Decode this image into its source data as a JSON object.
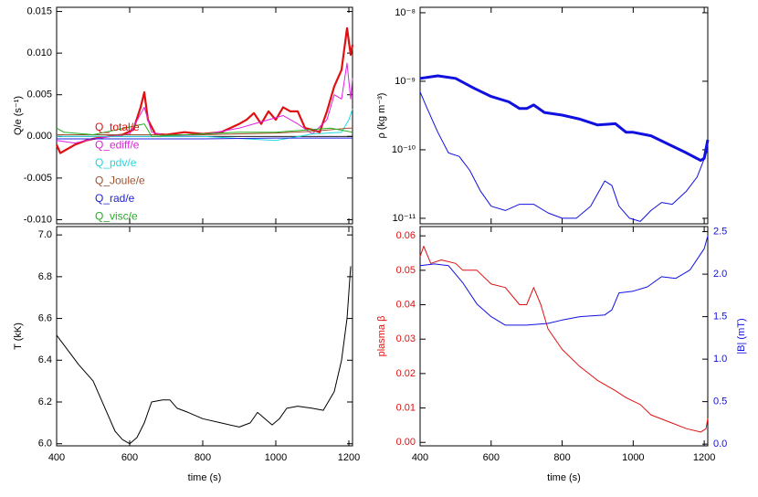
{
  "chart_data": [
    {
      "type": "line",
      "ylabel": "Q/e (s⁻¹)",
      "xlim": [
        400,
        1210
      ],
      "xticks": [
        400,
        600,
        800,
        1000,
        1200
      ],
      "ylim": [
        -0.0105,
        0.0155
      ],
      "yticks": [
        {
          "value": -0.01,
          "label": "-0.010"
        },
        -0.005,
        {
          "value": 0,
          "label": "0.000"
        },
        0.005,
        {
          "value": 0.01,
          "label": "0.010"
        },
        0.015
      ],
      "legend": "left",
      "series": [
        {
          "name": "Q_total/e",
          "color": "#e01010",
          "width": 2.2,
          "x": [
            400,
            410,
            430,
            450,
            480,
            500,
            540,
            580,
            610,
            630,
            640,
            650,
            670,
            700,
            750,
            800,
            850,
            900,
            920,
            940,
            960,
            980,
            1000,
            1020,
            1040,
            1060,
            1080,
            1100,
            1120,
            1140,
            1160,
            1180,
            1195,
            1205,
            1210
          ],
          "values": [
            -0.001,
            -0.002,
            -0.0015,
            -0.001,
            -0.0005,
            -0.0003,
            0,
            0.0002,
            0.0008,
            0.0035,
            0.0053,
            0.002,
            0.0003,
            0.0002,
            0.0005,
            0.0003,
            0.0005,
            0.0015,
            0.002,
            0.0028,
            0.0015,
            0.003,
            0.002,
            0.0035,
            0.003,
            0.003,
            0.001,
            0.0008,
            0.0005,
            0.003,
            0.006,
            0.008,
            0.013,
            0.0098,
            0.011
          ]
        },
        {
          "name": "Q_ediff/e",
          "color": "#e020e0",
          "width": 1,
          "x": [
            400,
            450,
            500,
            600,
            640,
            660,
            700,
            800,
            900,
            940,
            980,
            1020,
            1060,
            1100,
            1140,
            1160,
            1180,
            1195,
            1205,
            1210
          ],
          "values": [
            -0.0005,
            -0.0008,
            -0.0003,
            0.0003,
            0.0035,
            0.0005,
            0.0001,
            0.0002,
            0.001,
            0.0015,
            0.002,
            0.0025,
            0.0015,
            0.0003,
            0.002,
            0.005,
            0.0045,
            0.0088,
            0.0045,
            0.007
          ]
        },
        {
          "name": "Q_pdv/e",
          "color": "#20d8e0",
          "width": 1,
          "x": [
            400,
            600,
            800,
            1000,
            1100,
            1180,
            1200,
            1210
          ],
          "values": [
            0,
            0,
            0,
            -0.0005,
            0.0003,
            0.0005,
            0.002,
            0.0033
          ]
        },
        {
          "name": "Q_Joule/e",
          "color": "#a0522d",
          "width": 1,
          "x": [
            400,
            600,
            800,
            1000,
            1100,
            1200,
            1210
          ],
          "values": [
            0.0002,
            0.0002,
            0.0002,
            0.0004,
            0.0006,
            0.001,
            0.001
          ]
        },
        {
          "name": "Q_rad/e",
          "color": "#2020e0",
          "width": 1,
          "x": [
            400,
            640,
            800,
            1000,
            1200,
            1210
          ],
          "values": [
            -0.0003,
            -0.0003,
            -0.0003,
            -0.0002,
            -0.0002,
            -0.0002
          ]
        },
        {
          "name": "Q_visc/e",
          "color": "#20b020",
          "width": 1,
          "x": [
            400,
            420,
            500,
            640,
            660,
            900,
            1000,
            1150,
            1210
          ],
          "values": [
            0.001,
            0.0005,
            0.0002,
            0.0015,
            0,
            0.0005,
            0.0005,
            0.001,
            0.0005
          ]
        }
      ]
    },
    {
      "type": "line",
      "ylabel": "ρ (kg m⁻³)",
      "log_y": true,
      "xlim": [
        400,
        1210
      ],
      "xticks": [
        400,
        600,
        800,
        1000,
        1200
      ],
      "ylim": [
        8.3e-12,
        1.2e-08
      ],
      "yticks": [
        {
          "value": 1e-11,
          "label": "10⁻¹¹"
        },
        {
          "value": 1e-10,
          "label": "10⁻¹⁰"
        },
        {
          "value": 1e-09,
          "label": "10⁻⁹"
        },
        {
          "value": 1e-08,
          "label": "10⁻⁸"
        }
      ],
      "series": [
        {
          "color": "#1010e0",
          "width": 3,
          "x": [
            400,
            450,
            500,
            550,
            600,
            650,
            680,
            700,
            720,
            750,
            800,
            850,
            900,
            950,
            980,
            1000,
            1050,
            1100,
            1150,
            1190,
            1200,
            1210
          ],
          "values": [
            1.1e-09,
            1.2e-09,
            1.1e-09,
            8e-10,
            6e-10,
            5e-10,
            4e-10,
            4e-10,
            4.5e-10,
            3.5e-10,
            3.2e-10,
            2.8e-10,
            2.3e-10,
            2.4e-10,
            1.8e-10,
            1.8e-10,
            1.6e-10,
            1.2e-10,
            9e-11,
            7e-11,
            7.5e-11,
            1.4e-10
          ]
        },
        {
          "color": "#1010e0",
          "width": 1,
          "x": [
            400,
            420,
            450,
            480,
            510,
            540,
            570,
            600,
            640,
            680,
            720,
            760,
            800,
            840,
            880,
            920,
            940,
            960,
            990,
            1020,
            1050,
            1080,
            1110,
            1150,
            1180,
            1210
          ],
          "values": [
            7e-10,
            4e-10,
            1.8e-10,
            9e-11,
            8e-11,
            5e-11,
            2.5e-11,
            1.5e-11,
            1.3e-11,
            1.6e-11,
            1.6e-11,
            1.2e-11,
            1e-11,
            1e-11,
            1.5e-11,
            3.5e-11,
            3e-11,
            1.5e-11,
            1e-11,
            9e-12,
            1.3e-11,
            1.7e-11,
            1.6e-11,
            2.5e-11,
            4e-11,
            1e-10
          ]
        }
      ]
    },
    {
      "type": "line",
      "ylabel": "T (kK)",
      "xlabel": "time (s)",
      "xlim": [
        400,
        1210
      ],
      "xticks": [
        400,
        600,
        800,
        1000,
        1200
      ],
      "ylim": [
        5.99,
        7.04
      ],
      "yticks": [
        {
          "value": 6,
          "label": "6.0"
        },
        6.2,
        6.4,
        6.6,
        6.8,
        {
          "value": 7,
          "label": "7.0"
        }
      ],
      "series": [
        {
          "color": "#000000",
          "width": 1,
          "x": [
            400,
            430,
            460,
            500,
            530,
            560,
            580,
            600,
            620,
            640,
            660,
            690,
            710,
            730,
            760,
            800,
            850,
            900,
            930,
            950,
            970,
            990,
            1010,
            1030,
            1060,
            1100,
            1130,
            1160,
            1180,
            1195,
            1205
          ],
          "values": [
            6.52,
            6.45,
            6.38,
            6.3,
            6.18,
            6.06,
            6.02,
            6.0,
            6.03,
            6.1,
            6.2,
            6.21,
            6.21,
            6.17,
            6.15,
            6.12,
            6.1,
            6.08,
            6.1,
            6.15,
            6.12,
            6.09,
            6.12,
            6.17,
            6.18,
            6.17,
            6.16,
            6.25,
            6.4,
            6.6,
            6.85
          ]
        }
      ]
    },
    {
      "type": "line",
      "ylabel": "plasma β",
      "y2label": "|B| (mT)",
      "xlabel": "time (s)",
      "xlim": [
        400,
        1210
      ],
      "xticks": [
        400,
        600,
        800,
        1000,
        1200
      ],
      "ylim": [
        -0.001,
        0.0627
      ],
      "yticks": [
        {
          "value": 0,
          "label": "0.00"
        },
        0.01,
        0.02,
        0.03,
        0.04,
        0.05,
        0.06
      ],
      "y2lim": [
        -0.02,
        2.56
      ],
      "y2ticks": [
        {
          "value": 0,
          "label": "0.0"
        },
        0.5,
        {
          "value": 1,
          "label": "1.0"
        },
        1.5,
        {
          "value": 2,
          "label": "2.0"
        },
        2.5
      ],
      "series": [
        {
          "color": "#e01010",
          "width": 1,
          "axis": "y",
          "x": [
            400,
            410,
            430,
            460,
            500,
            520,
            560,
            600,
            640,
            680,
            700,
            720,
            740,
            760,
            800,
            850,
            900,
            950,
            980,
            1020,
            1050,
            1100,
            1150,
            1190,
            1205,
            1210
          ],
          "values": [
            0.054,
            0.057,
            0.052,
            0.053,
            0.052,
            0.05,
            0.05,
            0.046,
            0.045,
            0.04,
            0.04,
            0.045,
            0.04,
            0.033,
            0.027,
            0.022,
            0.018,
            0.015,
            0.013,
            0.011,
            0.008,
            0.006,
            0.004,
            0.003,
            0.004,
            0.007
          ]
        },
        {
          "color": "#1010e0",
          "width": 1,
          "axis": "y2",
          "x": [
            400,
            440,
            480,
            520,
            560,
            600,
            640,
            700,
            760,
            800,
            850,
            920,
            940,
            960,
            1000,
            1040,
            1080,
            1120,
            1160,
            1200,
            1210
          ],
          "values": [
            2.1,
            2.12,
            2.1,
            1.9,
            1.65,
            1.5,
            1.4,
            1.4,
            1.42,
            1.46,
            1.5,
            1.52,
            1.58,
            1.78,
            1.8,
            1.85,
            1.97,
            1.95,
            2.05,
            2.3,
            2.45
          ]
        }
      ]
    }
  ]
}
